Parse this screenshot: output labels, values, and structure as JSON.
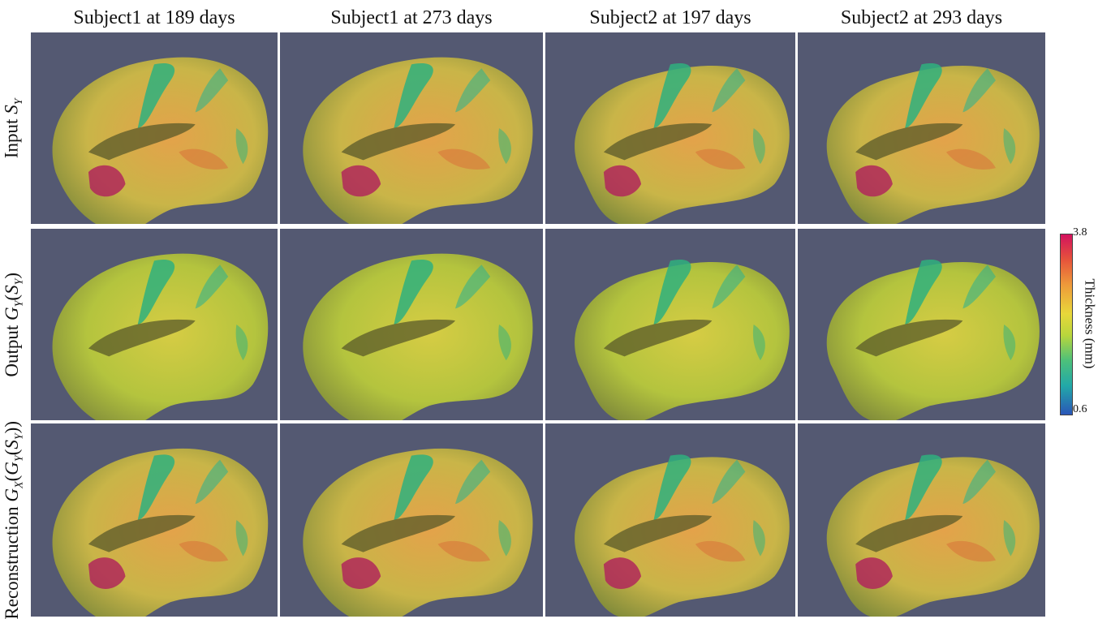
{
  "columns": [
    {
      "label": "Subject1 at 189 days"
    },
    {
      "label": "Subject1 at 273 days"
    },
    {
      "label": "Subject2 at 197 days"
    },
    {
      "label": "Subject2 at 293 days"
    }
  ],
  "rows": [
    {
      "prefix": "Input ",
      "math": "S",
      "sub": "Y",
      "suffix": ""
    },
    {
      "prefix": "Output ",
      "math": "G",
      "sub": "Y",
      "suffix": "(S_Y)"
    },
    {
      "prefix": "Reconstruction ",
      "math": "G",
      "sub": "X",
      "suffix": "(G_Y(S_Y))"
    }
  ],
  "colorbar": {
    "max": "3.8",
    "min": "0.6",
    "label": "Thickness (mm)",
    "colors": [
      "#d3125e",
      "#e6533b",
      "#ee9a3a",
      "#e8d73a",
      "#b9d63c",
      "#4dc07a",
      "#22a9a8",
      "#2a56b8"
    ]
  },
  "panel_background": "#545972",
  "panel_content": "brain-surface-render"
}
